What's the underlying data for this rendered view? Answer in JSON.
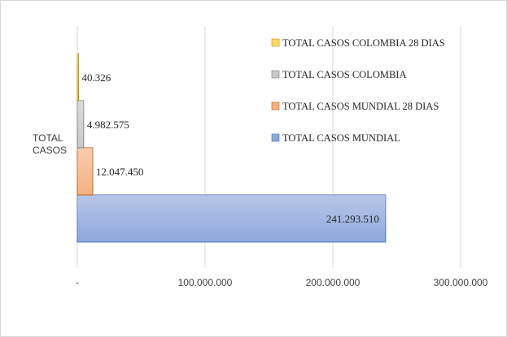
{
  "chart_data": {
    "type": "bar",
    "orientation": "horizontal",
    "categories": [
      "TOTAL CASOS"
    ],
    "series": [
      {
        "name": "TOTAL CASOS MUNDIAL",
        "values": [
          241293510
        ],
        "label": "241.293.510",
        "color": "#8fa8dc"
      },
      {
        "name": "TOTAL CASOS MUNDIAL 28 DIAS",
        "values": [
          12047450
        ],
        "label": "12.047.450",
        "color": "#f4b183"
      },
      {
        "name": "TOTAL CASOS COLOMBIA",
        "values": [
          4982575
        ],
        "label": "4.982.575",
        "color": "#c9c9c9"
      },
      {
        "name": "TOTAL CASOS COLOMBIA 28 DIAS",
        "values": [
          40326
        ],
        "label": "40.326",
        "color": "#ffd966"
      }
    ],
    "category_label_lines": [
      "TOTAL",
      "CASOS"
    ],
    "xlim": [
      0,
      300000000
    ],
    "xticks": [
      0,
      100000000,
      200000000,
      300000000
    ],
    "xtick_labels": [
      "-",
      "100.000.000",
      "200.000.000",
      "300.000.000"
    ],
    "grid": true,
    "legend_position": "top-right",
    "legend_order": [
      "TOTAL CASOS COLOMBIA 28 DIAS",
      "TOTAL CASOS COLOMBIA",
      "TOTAL CASOS MUNDIAL 28 DIAS",
      "TOTAL CASOS MUNDIAL"
    ]
  }
}
